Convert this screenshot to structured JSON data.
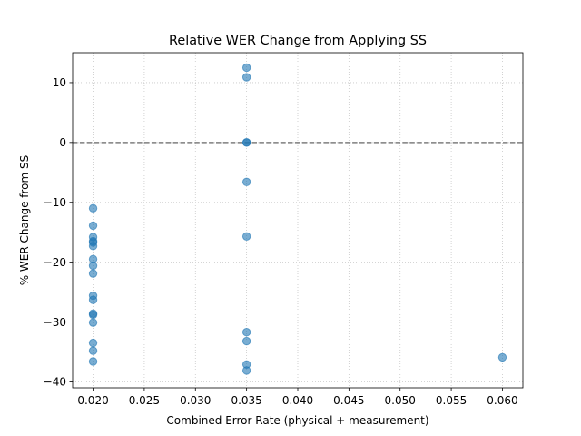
{
  "chart_data": {
    "type": "scatter",
    "title": "Relative WER Change from Applying SS",
    "xlabel": "Combined Error Rate (physical + measurement)",
    "ylabel": "% WER Change from SS",
    "xlim": [
      0.018,
      0.062
    ],
    "ylim": [
      -41,
      15
    ],
    "xticks": [
      0.02,
      0.025,
      0.03,
      0.035,
      0.04,
      0.045,
      0.05,
      0.055,
      0.06
    ],
    "xtick_labels": [
      "0.020",
      "0.025",
      "0.030",
      "0.035",
      "0.040",
      "0.045",
      "0.050",
      "0.055",
      "0.060"
    ],
    "yticks": [
      -40,
      -30,
      -20,
      -10,
      0,
      10
    ],
    "ytick_labels": [
      "−40",
      "−30",
      "−20",
      "−10",
      "0",
      "10"
    ],
    "grid": true,
    "reference_line": {
      "y": 0,
      "style": "dashed",
      "color": "#7f7f7f"
    },
    "marker_color": "#1f77b4",
    "marker_alpha": 0.6,
    "series": [
      {
        "points": [
          [
            0.02,
            -11.0
          ],
          [
            0.02,
            -13.9
          ],
          [
            0.02,
            -15.8
          ],
          [
            0.02,
            -16.5
          ],
          [
            0.02,
            -16.7
          ],
          [
            0.02,
            -17.3
          ],
          [
            0.02,
            -19.5
          ],
          [
            0.02,
            -20.6
          ],
          [
            0.02,
            -21.9
          ],
          [
            0.02,
            -25.6
          ],
          [
            0.02,
            -26.3
          ],
          [
            0.02,
            -28.6
          ],
          [
            0.02,
            -28.8
          ],
          [
            0.02,
            -30.1
          ],
          [
            0.02,
            -33.5
          ],
          [
            0.02,
            -34.8
          ],
          [
            0.02,
            -36.6
          ],
          [
            0.035,
            12.5
          ],
          [
            0.035,
            10.9
          ],
          [
            0.035,
            0.0
          ],
          [
            0.035,
            0.0
          ],
          [
            0.035,
            -6.6
          ],
          [
            0.035,
            -15.7
          ],
          [
            0.035,
            -31.7
          ],
          [
            0.035,
            -33.2
          ],
          [
            0.035,
            -37.1
          ],
          [
            0.035,
            -38.1
          ],
          [
            0.06,
            -35.9
          ]
        ]
      }
    ]
  }
}
